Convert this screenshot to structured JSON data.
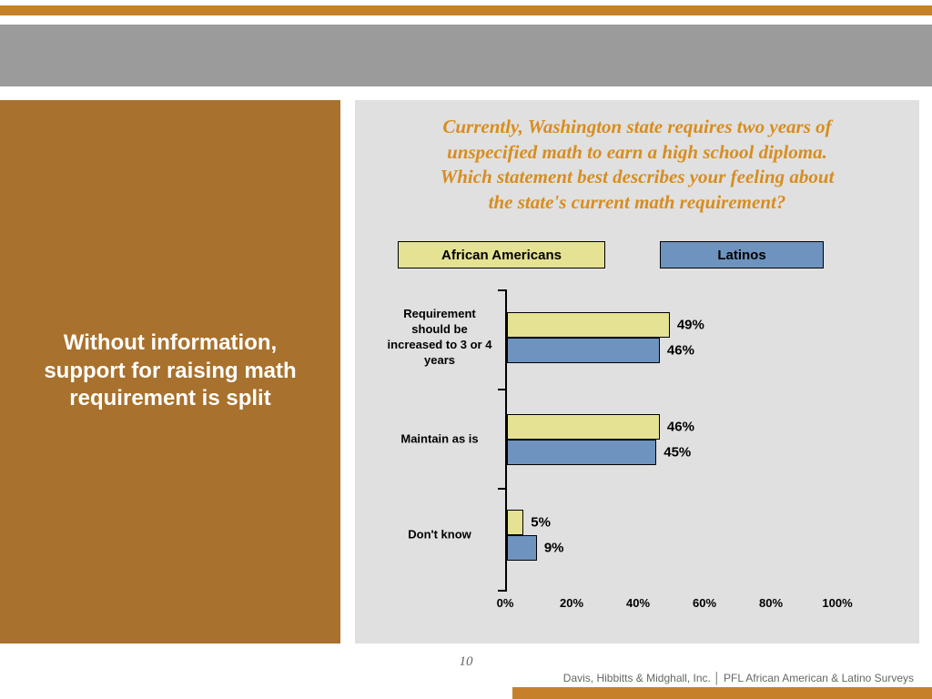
{
  "slide": {
    "message": "Without information, support for raising math requirement is split",
    "page_number": "10",
    "footer": "Davis, Hibbitts & Midghall, Inc. │ PFL African American & Latino Surveys"
  },
  "chart_data": {
    "type": "bar",
    "orientation": "horizontal",
    "title": "Currently, Washington state requires two years of unspecified math to earn a high school diploma. Which statement best describes your feeling about the state's current math requirement?",
    "title_lines": [
      "Currently, Washington state requires two years of",
      "unspecified math to earn a high school diploma.",
      "Which statement best describes your feeling about",
      "the state's current math requirement?"
    ],
    "categories": [
      "Requirement should be increased to 3 or 4 years",
      "Maintain as is",
      "Don't know"
    ],
    "series": [
      {
        "name": "African Americans",
        "color": "#E5E293",
        "values": [
          49,
          46,
          5
        ]
      },
      {
        "name": "Latinos",
        "color": "#6F93BF",
        "values": [
          46,
          45,
          9
        ]
      }
    ],
    "x_ticks": [
      "0%",
      "20%",
      "40%",
      "60%",
      "80%",
      "100%"
    ],
    "xlim": [
      0,
      100
    ],
    "grid": false,
    "legend_position": "top"
  },
  "colors": {
    "accent_orange": "#C6802A",
    "panel_brown": "#A8712D",
    "band_gray": "#9B9B9B",
    "chart_background": "#E0E0E0",
    "title_orange": "#D88D1E",
    "african_americans_bar": "#E5E293",
    "latinos_bar": "#6F93BF"
  }
}
